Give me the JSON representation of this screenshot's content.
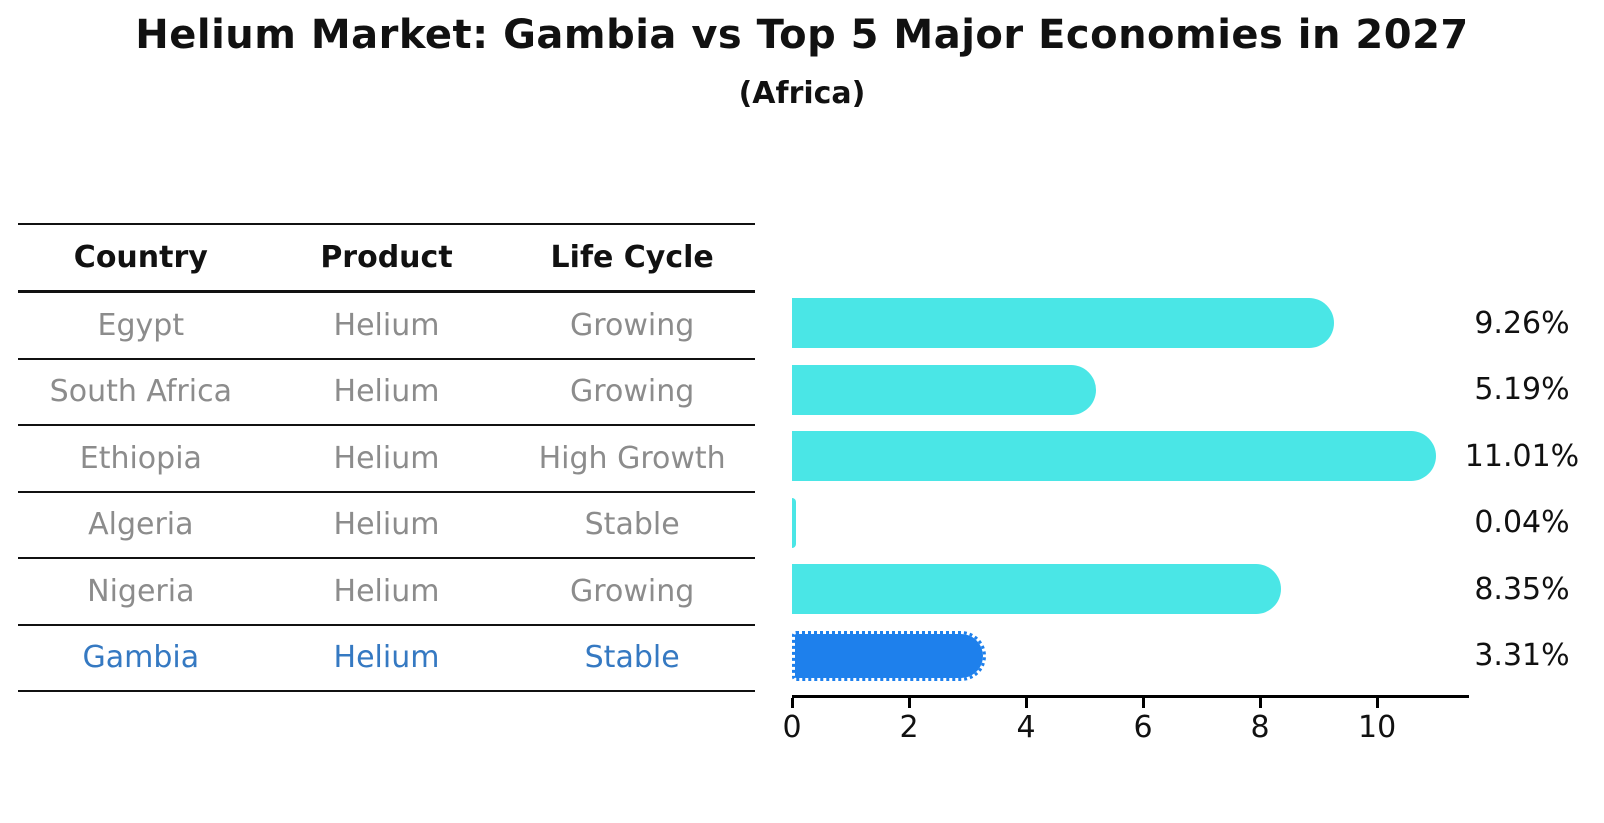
{
  "title": "Helium Market: Gambia vs Top 5 Major Economies in 2027",
  "subtitle": "(Africa)",
  "table": {
    "headers": [
      "Country",
      "Product",
      "Life Cycle"
    ],
    "rows": [
      {
        "country": "Egypt",
        "product": "Helium",
        "life_cycle": "Growing",
        "highlight": false
      },
      {
        "country": "South Africa",
        "product": "Helium",
        "life_cycle": "Growing",
        "highlight": false
      },
      {
        "country": "Ethiopia",
        "product": "Helium",
        "life_cycle": "High Growth",
        "highlight": false
      },
      {
        "country": "Algeria",
        "product": "Helium",
        "life_cycle": "Stable",
        "highlight": false
      },
      {
        "country": "Nigeria",
        "product": "Helium",
        "life_cycle": "Growing",
        "highlight": false
      },
      {
        "country": "Gambia",
        "product": "Helium",
        "life_cycle": "Stable",
        "highlight": true
      }
    ]
  },
  "chart_data": {
    "type": "bar",
    "orientation": "horizontal",
    "title": "Helium Market: Gambia vs Top 5 Major Economies in 2027",
    "subtitle": "(Africa)",
    "categories": [
      "Egypt",
      "South Africa",
      "Ethiopia",
      "Algeria",
      "Nigeria",
      "Gambia"
    ],
    "values": [
      9.26,
      5.19,
      11.01,
      0.04,
      8.35,
      3.31
    ],
    "value_labels": [
      "9.26%",
      "5.19%",
      "11.01%",
      "0.04%",
      "8.35%",
      "3.31%"
    ],
    "xlabel": "",
    "ylabel": "",
    "xlim": [
      0,
      11.57
    ],
    "xticks": [
      0,
      2,
      4,
      6,
      8,
      10
    ],
    "grid": false,
    "legend": "none",
    "highlight_index": 5
  },
  "colors": {
    "bar_cyan": "#4ae6e6",
    "bar_blue": "#1e80ec",
    "highlight_text": "#3579c2",
    "cell_text": "#8c8c8c",
    "axis_and_lines": "#000000"
  }
}
